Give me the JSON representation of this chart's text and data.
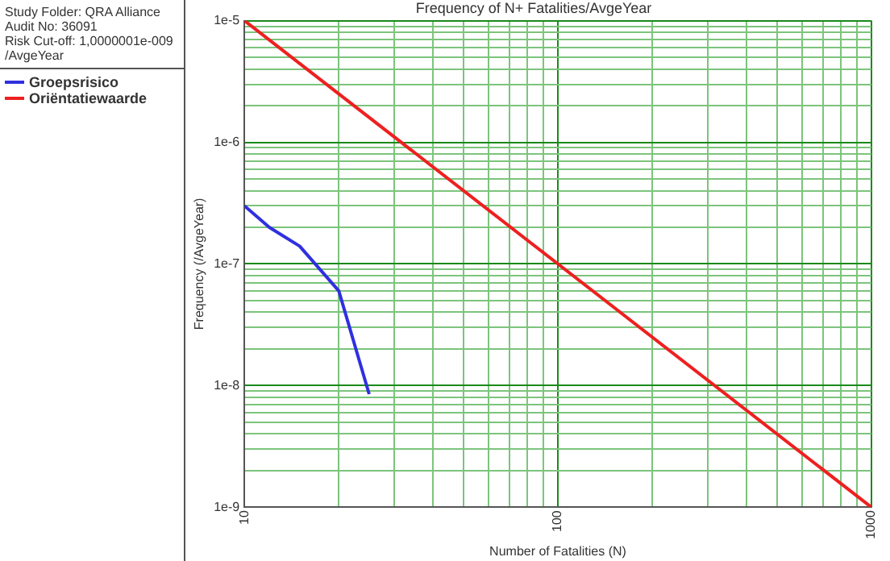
{
  "chart_data": {
    "type": "line",
    "title": "Frequency of N+ Fatalities/AvgeYear",
    "xlabel": "Number of Fatalities (N)",
    "ylabel": "Frequency (/AvgeYear)",
    "annotations": [
      "Study Folder: QRA Alliance",
      "Audit No: 36091",
      "Risk Cut-off: 1,0000001e-009 /AvgeYear"
    ],
    "log": "xy",
    "grid": true,
    "legend": "left",
    "marker": "none",
    "line_style": "solid",
    "xlim": [
      10,
      1000
    ],
    "ylim": [
      1e-09,
      1e-05
    ],
    "xticks": [
      10,
      {
        "value": 20,
        "label": null
      },
      {
        "value": 30,
        "label": null
      },
      {
        "value": 40,
        "label": null
      },
      {
        "value": 50,
        "label": null
      },
      {
        "value": 60,
        "label": null
      },
      {
        "value": 70,
        "label": null
      },
      {
        "value": 80,
        "label": null
      },
      {
        "value": 90,
        "label": null
      },
      100,
      {
        "value": 200,
        "label": null
      },
      {
        "value": 300,
        "label": null
      },
      {
        "value": 400,
        "label": null
      },
      {
        "value": 500,
        "label": null
      },
      {
        "value": 600,
        "label": null
      },
      {
        "value": 700,
        "label": null
      },
      {
        "value": 800,
        "label": null
      },
      {
        "value": 900,
        "label": null
      },
      1000
    ],
    "yticks": [
      {
        "value": 1e-09,
        "label": "1e-9"
      },
      {
        "value": 2e-09,
        "label": null
      },
      {
        "value": 3e-09,
        "label": null
      },
      {
        "value": 4e-09,
        "label": null
      },
      {
        "value": 5e-09,
        "label": null
      },
      {
        "value": 6e-09,
        "label": null
      },
      {
        "value": 7e-09,
        "label": null
      },
      {
        "value": 8e-09,
        "label": null
      },
      {
        "value": 9e-09,
        "label": null
      },
      {
        "value": 1e-08,
        "label": "1e-8"
      },
      {
        "value": 2e-08,
        "label": null
      },
      {
        "value": 3e-08,
        "label": null
      },
      {
        "value": 4e-08,
        "label": null
      },
      {
        "value": 5e-08,
        "label": null
      },
      {
        "value": 6e-08,
        "label": null
      },
      {
        "value": 7e-08,
        "label": null
      },
      {
        "value": 8e-08,
        "label": null
      },
      {
        "value": 9e-08,
        "label": null
      },
      {
        "value": 1e-07,
        "label": "1e-7"
      },
      {
        "value": 2e-07,
        "label": null
      },
      {
        "value": 3e-07,
        "label": null
      },
      {
        "value": 4e-07,
        "label": null
      },
      {
        "value": 5e-07,
        "label": null
      },
      {
        "value": 6e-07,
        "label": null
      },
      {
        "value": 7e-07,
        "label": null
      },
      {
        "value": 8e-07,
        "label": null
      },
      {
        "value": 9e-07,
        "label": null
      },
      {
        "value": 1e-06,
        "label": "1e-6"
      },
      {
        "value": 2e-06,
        "label": null
      },
      {
        "value": 3e-06,
        "label": null
      },
      {
        "value": 4e-06,
        "label": null
      },
      {
        "value": 5e-06,
        "label": null
      },
      {
        "value": 6e-06,
        "label": null
      },
      {
        "value": 7e-06,
        "label": null
      },
      {
        "value": 8e-06,
        "label": null
      },
      {
        "value": 9e-06,
        "label": null
      },
      {
        "value": 1e-05,
        "label": "1e-5"
      }
    ],
    "series": [
      {
        "name": "Groepsrisico",
        "color": "#3030e0",
        "x": [
          10,
          12,
          15,
          20,
          25
        ],
        "values": [
          3e-07,
          2e-07,
          1.4e-07,
          6e-08,
          8.5e-09
        ]
      },
      {
        "name": "Oriëntatiewaarde",
        "color": "#ee2020",
        "x": [
          10,
          1000
        ],
        "values": [
          1e-05,
          1e-09
        ]
      }
    ]
  }
}
